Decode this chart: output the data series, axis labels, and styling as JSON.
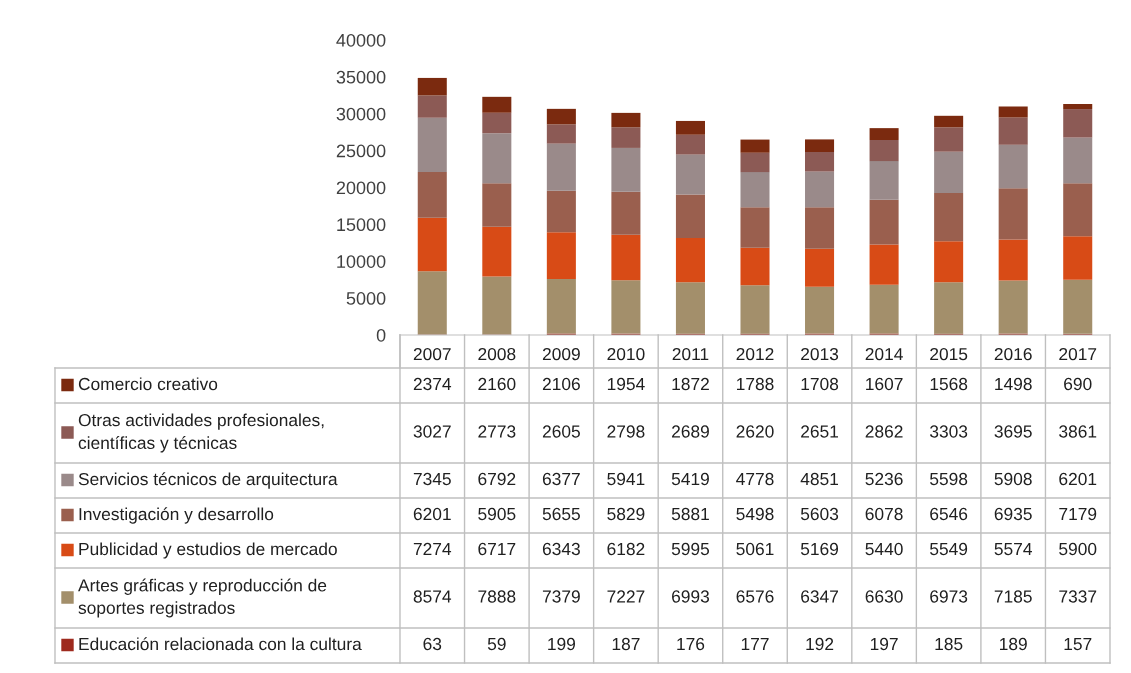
{
  "chart_data": {
    "type": "bar",
    "stacked": true,
    "data_labels": true,
    "legend": "bottom",
    "grid": false,
    "categories": [
      "2007",
      "2008",
      "2009",
      "2010",
      "2011",
      "2012",
      "2013",
      "2014",
      "2015",
      "2016",
      "2017"
    ],
    "ylim": [
      0,
      40000
    ],
    "yticks": [
      0,
      5000,
      10000,
      15000,
      20000,
      25000,
      30000,
      35000,
      40000
    ],
    "series": [
      {
        "name": "Educación relacionada con la cultura",
        "color": "#9e2a1e",
        "values": [
          63,
          59,
          199,
          187,
          176,
          177,
          192,
          197,
          185,
          189,
          157
        ]
      },
      {
        "name": "Artes gráficas y reproducción de\nsoportes registrados",
        "color": "#a38f6b",
        "values": [
          8574,
          7888,
          7379,
          7227,
          6993,
          6576,
          6347,
          6630,
          6973,
          7185,
          7337
        ]
      },
      {
        "name": "Publicidad y estudios de mercado",
        "color": "#d84b16",
        "values": [
          7274,
          6717,
          6343,
          6182,
          5995,
          5061,
          5169,
          5440,
          5549,
          5574,
          5900
        ]
      },
      {
        "name": "Investigación y desarrollo",
        "color": "#9a5f4e",
        "values": [
          6201,
          5905,
          5655,
          5829,
          5881,
          5498,
          5603,
          6078,
          6546,
          6935,
          7179
        ]
      },
      {
        "name": "Servicios técnicos de arquitectura",
        "color": "#9a8a8a",
        "values": [
          7345,
          6792,
          6377,
          5941,
          5419,
          4778,
          4851,
          5236,
          5598,
          5908,
          6201
        ]
      },
      {
        "name": "Otras actividades profesionales,\ncientíficas y técnicas",
        "color": "#8c5a55",
        "values": [
          3027,
          2773,
          2605,
          2798,
          2689,
          2620,
          2651,
          2862,
          3303,
          3695,
          3861
        ]
      },
      {
        "name": "Comercio creativo",
        "color": "#7b2a0f",
        "values": [
          2374,
          2160,
          2106,
          1954,
          1872,
          1788,
          1708,
          1607,
          1568,
          1498,
          690
        ]
      }
    ]
  }
}
